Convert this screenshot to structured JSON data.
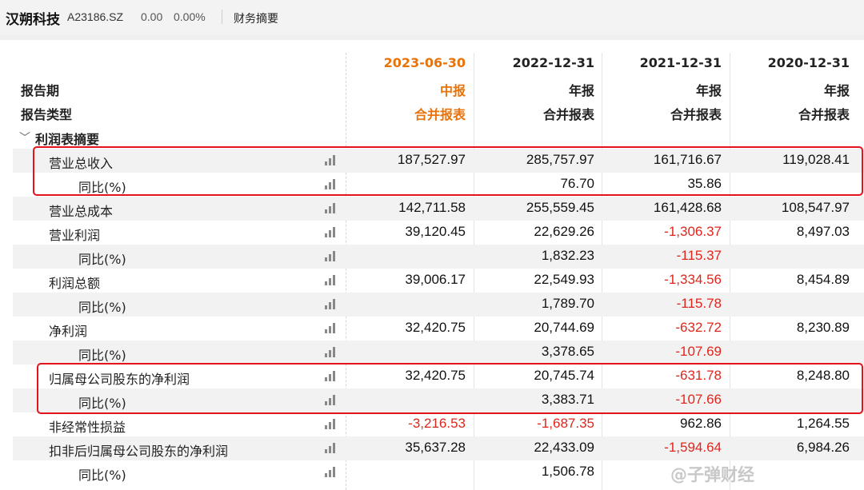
{
  "header": {
    "company": "汉朔科技",
    "code": "A23186.SZ",
    "change": "0.00",
    "change_pct": "0.00%",
    "tab": "财务摘要"
  },
  "table": {
    "labels": {
      "period": "报告期",
      "report_type": "报告类型"
    },
    "columns": [
      {
        "date": "2023-06-30",
        "period": "中报",
        "type": "合并报表",
        "highlight": true
      },
      {
        "date": "2022-12-31",
        "period": "年报",
        "type": "合并报表",
        "highlight": false
      },
      {
        "date": "2021-12-31",
        "period": "年报",
        "type": "合并报表",
        "highlight": false
      },
      {
        "date": "2020-12-31",
        "period": "年报",
        "type": "合并报表",
        "highlight": false
      }
    ],
    "section": "利润表摘要",
    "rows": [
      {
        "name": "营业总收入",
        "values": [
          "187,527.97",
          "285,757.97",
          "161,716.67",
          "119,028.41"
        ]
      },
      {
        "name": "同比(%)",
        "values": [
          "",
          "76.70",
          "35.86",
          ""
        ]
      },
      {
        "name": "营业总成本",
        "values": [
          "142,711.58",
          "255,559.45",
          "161,428.68",
          "108,547.97"
        ]
      },
      {
        "name": "营业利润",
        "values": [
          "39,120.45",
          "22,629.26",
          "-1,306.37",
          "8,497.03"
        ]
      },
      {
        "name": "同比(%)",
        "values": [
          "",
          "1,832.23",
          "-115.37",
          ""
        ]
      },
      {
        "name": "利润总额",
        "values": [
          "39,006.17",
          "22,549.93",
          "-1,334.56",
          "8,454.89"
        ]
      },
      {
        "name": "同比(%)",
        "values": [
          "",
          "1,789.70",
          "-115.78",
          ""
        ]
      },
      {
        "name": "净利润",
        "values": [
          "32,420.75",
          "20,744.69",
          "-632.72",
          "8,230.89"
        ]
      },
      {
        "name": "同比(%)",
        "values": [
          "",
          "3,378.65",
          "-107.69",
          ""
        ]
      },
      {
        "name": "归属母公司股东的净利润",
        "values": [
          "32,420.75",
          "20,745.74",
          "-631.78",
          "8,248.80"
        ]
      },
      {
        "name": "同比(%)",
        "values": [
          "",
          "3,383.71",
          "-107.66",
          ""
        ]
      },
      {
        "name": "非经常性损益",
        "values": [
          "-3,216.53",
          "-1,687.35",
          "962.86",
          "1,264.55"
        ]
      },
      {
        "name": "扣非后归属母公司股东的净利润",
        "values": [
          "35,637.28",
          "22,433.09",
          "-1,594.64",
          "6,984.26"
        ]
      },
      {
        "name": "同比(%)",
        "values": [
          "",
          "1,506.78",
          "",
          ""
        ]
      }
    ]
  },
  "watermark": "@子弹财经",
  "colors": {
    "highlight": "#e8730a",
    "negative": "#e0261c",
    "box": "#e3121b"
  }
}
